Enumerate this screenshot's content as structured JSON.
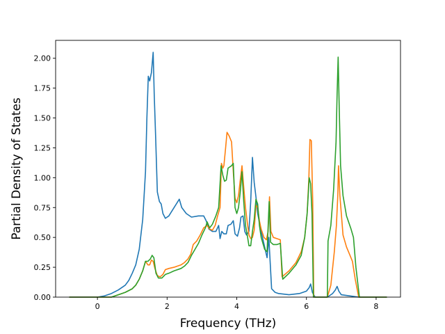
{
  "chart_data": {
    "type": "line",
    "title": "",
    "xlabel": "Frequency (THz)",
    "ylabel": "Partial Density of States",
    "xlim": [
      -1.2,
      8.7
    ],
    "ylim": [
      0,
      2.15
    ],
    "xticks": [
      0,
      2,
      4,
      6,
      8
    ],
    "xtick_labels": [
      "0",
      "2",
      "4",
      "6",
      "8"
    ],
    "yticks": [
      0,
      0.25,
      0.5,
      0.75,
      1.0,
      1.25,
      1.5,
      1.75,
      2.0
    ],
    "ytick_labels": [
      "0.00",
      "0.25",
      "0.50",
      "0.75",
      "1.00",
      "1.25",
      "1.50",
      "1.75",
      "2.00"
    ],
    "grid": false,
    "legend": "none",
    "series": [
      {
        "color": "#1f77b4",
        "points": [
          [
            -0.8,
            0
          ],
          [
            0,
            0
          ],
          [
            0.2,
            0.01
          ],
          [
            0.4,
            0.03
          ],
          [
            0.6,
            0.06
          ],
          [
            0.8,
            0.1
          ],
          [
            0.9,
            0.14
          ],
          [
            1.0,
            0.2
          ],
          [
            1.1,
            0.27
          ],
          [
            1.2,
            0.4
          ],
          [
            1.3,
            0.65
          ],
          [
            1.38,
            1.05
          ],
          [
            1.42,
            1.5
          ],
          [
            1.46,
            1.85
          ],
          [
            1.5,
            1.81
          ],
          [
            1.55,
            1.88
          ],
          [
            1.6,
            2.05
          ],
          [
            1.63,
            1.7
          ],
          [
            1.67,
            1.35
          ],
          [
            1.72,
            0.88
          ],
          [
            1.78,
            0.8
          ],
          [
            1.83,
            0.78
          ],
          [
            1.88,
            0.7
          ],
          [
            1.95,
            0.66
          ],
          [
            2.05,
            0.68
          ],
          [
            2.2,
            0.75
          ],
          [
            2.35,
            0.82
          ],
          [
            2.42,
            0.75
          ],
          [
            2.55,
            0.7
          ],
          [
            2.7,
            0.67
          ],
          [
            2.9,
            0.68
          ],
          [
            3.05,
            0.68
          ],
          [
            3.12,
            0.64
          ],
          [
            3.2,
            0.57
          ],
          [
            3.3,
            0.55
          ],
          [
            3.4,
            0.55
          ],
          [
            3.48,
            0.6
          ],
          [
            3.52,
            0.49
          ],
          [
            3.57,
            0.55
          ],
          [
            3.63,
            0.53
          ],
          [
            3.7,
            0.53
          ],
          [
            3.75,
            0.6
          ],
          [
            3.83,
            0.61
          ],
          [
            3.9,
            0.64
          ],
          [
            3.95,
            0.53
          ],
          [
            4.02,
            0.51
          ],
          [
            4.08,
            0.58
          ],
          [
            4.12,
            0.67
          ],
          [
            4.18,
            0.68
          ],
          [
            4.23,
            0.55
          ],
          [
            4.28,
            0.52
          ],
          [
            4.35,
            0.55
          ],
          [
            4.4,
            0.8
          ],
          [
            4.45,
            1.17
          ],
          [
            4.5,
            0.96
          ],
          [
            4.55,
            0.84
          ],
          [
            4.6,
            0.7
          ],
          [
            4.7,
            0.55
          ],
          [
            4.8,
            0.42
          ],
          [
            4.87,
            0.33
          ],
          [
            4.92,
            0.5
          ],
          [
            5.0,
            0.07
          ],
          [
            5.1,
            0.04
          ],
          [
            5.2,
            0.03
          ],
          [
            5.5,
            0.02
          ],
          [
            5.8,
            0.03
          ],
          [
            6.0,
            0.05
          ],
          [
            6.08,
            0.08
          ],
          [
            6.12,
            0.11
          ],
          [
            6.17,
            0.04
          ],
          [
            6.25,
            0
          ],
          [
            6.6,
            0
          ],
          [
            6.75,
            0.03
          ],
          [
            6.83,
            0.06
          ],
          [
            6.88,
            0.09
          ],
          [
            6.93,
            0.05
          ],
          [
            7.0,
            0.02
          ],
          [
            7.5,
            0
          ],
          [
            8.3,
            0
          ]
        ]
      },
      {
        "color": "#ff7f0e",
        "points": [
          [
            -0.8,
            0
          ],
          [
            0,
            0
          ],
          [
            0.4,
            0
          ],
          [
            0.6,
            0.02
          ],
          [
            0.8,
            0.04
          ],
          [
            1.0,
            0.07
          ],
          [
            1.1,
            0.1
          ],
          [
            1.2,
            0.15
          ],
          [
            1.3,
            0.22
          ],
          [
            1.38,
            0.3
          ],
          [
            1.45,
            0.27
          ],
          [
            1.5,
            0.27
          ],
          [
            1.55,
            0.31
          ],
          [
            1.6,
            0.3
          ],
          [
            1.65,
            0.24
          ],
          [
            1.72,
            0.18
          ],
          [
            1.8,
            0.17
          ],
          [
            1.88,
            0.19
          ],
          [
            1.95,
            0.23
          ],
          [
            2.05,
            0.24
          ],
          [
            2.2,
            0.25
          ],
          [
            2.4,
            0.27
          ],
          [
            2.5,
            0.29
          ],
          [
            2.6,
            0.32
          ],
          [
            2.68,
            0.36
          ],
          [
            2.75,
            0.44
          ],
          [
            2.85,
            0.47
          ],
          [
            2.95,
            0.52
          ],
          [
            3.05,
            0.58
          ],
          [
            3.15,
            0.6
          ],
          [
            3.22,
            0.57
          ],
          [
            3.3,
            0.56
          ],
          [
            3.38,
            0.6
          ],
          [
            3.45,
            0.68
          ],
          [
            3.52,
            0.75
          ],
          [
            3.56,
            1.12
          ],
          [
            3.6,
            1.08
          ],
          [
            3.63,
            1.1
          ],
          [
            3.68,
            1.25
          ],
          [
            3.72,
            1.38
          ],
          [
            3.78,
            1.35
          ],
          [
            3.85,
            1.3
          ],
          [
            3.9,
            1.05
          ],
          [
            3.95,
            0.83
          ],
          [
            4.0,
            0.79
          ],
          [
            4.05,
            0.85
          ],
          [
            4.1,
            0.98
          ],
          [
            4.15,
            1.1
          ],
          [
            4.2,
            0.92
          ],
          [
            4.25,
            0.75
          ],
          [
            4.3,
            0.63
          ],
          [
            4.35,
            0.52
          ],
          [
            4.4,
            0.49
          ],
          [
            4.45,
            0.5
          ],
          [
            4.5,
            0.56
          ],
          [
            4.55,
            0.77
          ],
          [
            4.6,
            0.75
          ],
          [
            4.65,
            0.64
          ],
          [
            4.7,
            0.57
          ],
          [
            4.78,
            0.5
          ],
          [
            4.85,
            0.48
          ],
          [
            4.9,
            0.55
          ],
          [
            4.94,
            0.84
          ],
          [
            4.98,
            0.55
          ],
          [
            5.05,
            0.5
          ],
          [
            5.15,
            0.49
          ],
          [
            5.25,
            0.48
          ],
          [
            5.3,
            0.17
          ],
          [
            5.5,
            0.22
          ],
          [
            5.7,
            0.29
          ],
          [
            5.85,
            0.38
          ],
          [
            5.95,
            0.5
          ],
          [
            6.02,
            0.7
          ],
          [
            6.07,
            1.0
          ],
          [
            6.1,
            1.32
          ],
          [
            6.14,
            1.31
          ],
          [
            6.18,
            0.8
          ],
          [
            6.21,
            0
          ],
          [
            6.6,
            0
          ],
          [
            6.7,
            0.1
          ],
          [
            6.8,
            0.38
          ],
          [
            6.86,
            0.6
          ],
          [
            6.9,
            0.85
          ],
          [
            6.92,
            1.1
          ],
          [
            6.96,
            0.85
          ],
          [
            7.05,
            0.52
          ],
          [
            7.15,
            0.42
          ],
          [
            7.25,
            0.35
          ],
          [
            7.32,
            0.3
          ],
          [
            7.4,
            0.15
          ],
          [
            7.5,
            0
          ],
          [
            8.3,
            0
          ]
        ]
      },
      {
        "color": "#2ca02c",
        "points": [
          [
            -0.8,
            0
          ],
          [
            0,
            0
          ],
          [
            0.4,
            0
          ],
          [
            0.6,
            0.02
          ],
          [
            0.8,
            0.04
          ],
          [
            1.0,
            0.07
          ],
          [
            1.1,
            0.1
          ],
          [
            1.2,
            0.15
          ],
          [
            1.3,
            0.22
          ],
          [
            1.38,
            0.3
          ],
          [
            1.45,
            0.3
          ],
          [
            1.52,
            0.32
          ],
          [
            1.57,
            0.35
          ],
          [
            1.62,
            0.33
          ],
          [
            1.68,
            0.2
          ],
          [
            1.75,
            0.16
          ],
          [
            1.85,
            0.16
          ],
          [
            1.95,
            0.19
          ],
          [
            2.05,
            0.2
          ],
          [
            2.2,
            0.22
          ],
          [
            2.4,
            0.24
          ],
          [
            2.5,
            0.26
          ],
          [
            2.6,
            0.29
          ],
          [
            2.7,
            0.35
          ],
          [
            2.8,
            0.4
          ],
          [
            2.9,
            0.45
          ],
          [
            3.0,
            0.52
          ],
          [
            3.1,
            0.58
          ],
          [
            3.15,
            0.63
          ],
          [
            3.22,
            0.58
          ],
          [
            3.3,
            0.61
          ],
          [
            3.4,
            0.68
          ],
          [
            3.48,
            0.75
          ],
          [
            3.55,
            1.1
          ],
          [
            3.6,
            1.02
          ],
          [
            3.65,
            0.97
          ],
          [
            3.7,
            0.98
          ],
          [
            3.75,
            1.08
          ],
          [
            3.85,
            1.1
          ],
          [
            3.9,
            1.12
          ],
          [
            3.95,
            0.75
          ],
          [
            4.0,
            0.7
          ],
          [
            4.05,
            0.75
          ],
          [
            4.1,
            0.88
          ],
          [
            4.15,
            1.05
          ],
          [
            4.2,
            0.8
          ],
          [
            4.25,
            0.6
          ],
          [
            4.3,
            0.52
          ],
          [
            4.35,
            0.43
          ],
          [
            4.4,
            0.43
          ],
          [
            4.45,
            0.55
          ],
          [
            4.5,
            0.65
          ],
          [
            4.55,
            0.82
          ],
          [
            4.6,
            0.78
          ],
          [
            4.65,
            0.6
          ],
          [
            4.7,
            0.5
          ],
          [
            4.8,
            0.4
          ],
          [
            4.87,
            0.38
          ],
          [
            4.93,
            0.8
          ],
          [
            4.97,
            0.46
          ],
          [
            5.05,
            0.44
          ],
          [
            5.15,
            0.44
          ],
          [
            5.25,
            0.45
          ],
          [
            5.32,
            0.15
          ],
          [
            5.5,
            0.2
          ],
          [
            5.7,
            0.27
          ],
          [
            5.85,
            0.35
          ],
          [
            5.95,
            0.5
          ],
          [
            6.02,
            0.7
          ],
          [
            6.08,
            1.0
          ],
          [
            6.12,
            0.95
          ],
          [
            6.16,
            0.7
          ],
          [
            6.2,
            0
          ],
          [
            6.6,
            0
          ],
          [
            6.62,
            0.47
          ],
          [
            6.7,
            0.6
          ],
          [
            6.78,
            0.9
          ],
          [
            6.85,
            1.3
          ],
          [
            6.88,
            1.7
          ],
          [
            6.91,
            2.01
          ],
          [
            6.94,
            1.6
          ],
          [
            6.98,
            1.1
          ],
          [
            7.05,
            0.85
          ],
          [
            7.15,
            0.68
          ],
          [
            7.28,
            0.57
          ],
          [
            7.35,
            0.5
          ],
          [
            7.42,
            0.25
          ],
          [
            7.52,
            0
          ],
          [
            8.3,
            0
          ]
        ]
      }
    ]
  }
}
